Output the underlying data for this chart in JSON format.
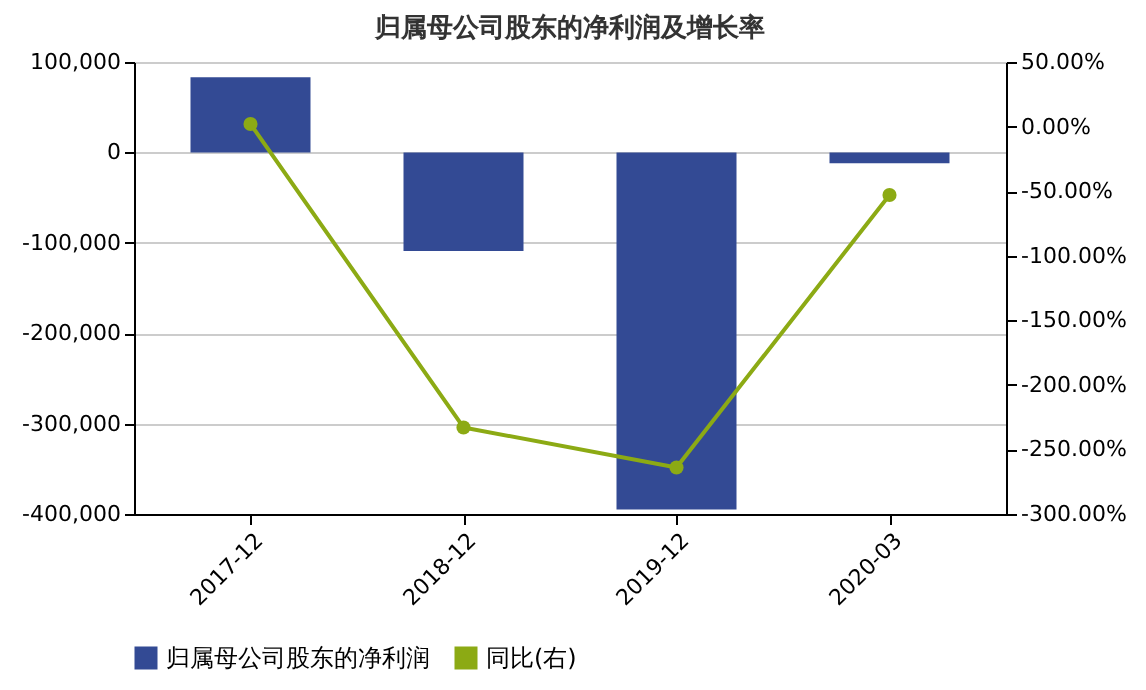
{
  "chart_data": {
    "type": "bar",
    "title": "归属母公司股东的净利润及增长率",
    "categories": [
      "2017-12",
      "2018-12",
      "2019-12",
      "2020-03"
    ],
    "series": [
      {
        "name": "归属母公司股东的净利润",
        "color": "#334a94",
        "values": [
          83000,
          -109000,
          -395000,
          -12000
        ]
      },
      {
        "name": "同比(右)",
        "type": "line",
        "axis": "y2",
        "color": "#8caa14",
        "marker": "circle",
        "values": [
          2,
          -233,
          -264,
          -53
        ]
      }
    ],
    "ylim": [
      -400000,
      100000
    ],
    "yticks": [
      {
        "value": -400000,
        "label": "-400,000"
      },
      {
        "value": -300000,
        "label": "-300,000"
      },
      {
        "value": -200000,
        "label": "-200,000"
      },
      {
        "value": -100000,
        "label": "-100,000"
      },
      0,
      {
        "value": 100000,
        "label": "100,000"
      }
    ],
    "y2lim": [
      -300,
      50
    ],
    "y2ticks": [
      {
        "value": -300,
        "label": "-300.00%"
      },
      {
        "value": -250,
        "label": "-250.00%"
      },
      {
        "value": -200,
        "label": "-200.00%"
      },
      {
        "value": -150,
        "label": "-150.00%"
      },
      {
        "value": -100,
        "label": "-100.00%"
      },
      {
        "value": -50,
        "label": "-50.00%"
      },
      {
        "value": 0,
        "label": "0.00%"
      },
      {
        "value": 50,
        "label": "50.00%"
      }
    ],
    "grid": "y",
    "legend": "bottom"
  }
}
